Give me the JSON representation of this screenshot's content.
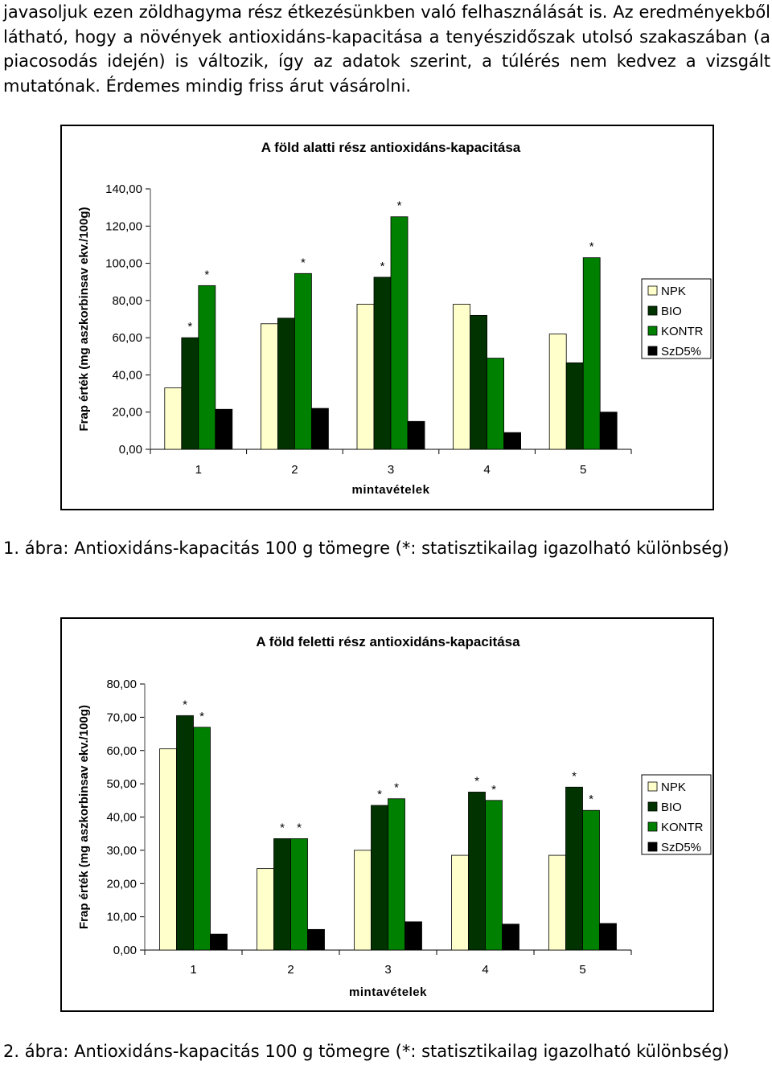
{
  "paragraph": {
    "lines": [
      "javasoljuk ezen zöldhagyma rész étkezésünkben való felhasználását is. Az eredményekből",
      "látható, hogy a növények antioxidáns-kapacitása a tenyészidőszak utolsó szakaszában (a",
      "piacosodás idején) is változik, így az adatok szerint, a túlérés nem kedvez a vizsgált",
      "mutatónak. Érdemes mindig friss árut vásárolni."
    ]
  },
  "colors": {
    "NPK": "#FFFFCC",
    "BIO": "#003300",
    "KONTR": "#008000",
    "SzD5%": "#000000"
  },
  "chart_data": [
    {
      "type": "bar",
      "title": "A föld alatti rész antioxidáns-kapacitása",
      "xlabel": "mintavételek",
      "ylabel": "Frap érték (mg aszkorbinsav ekv./100g)",
      "categories": [
        "1",
        "2",
        "3",
        "4",
        "5"
      ],
      "ylim": [
        0,
        140
      ],
      "yticks": [
        0,
        20,
        40,
        60,
        80,
        100,
        120,
        140
      ],
      "ytick_labels": [
        "0,00",
        "20,00",
        "40,00",
        "60,00",
        "80,00",
        "100,00",
        "120,00",
        "140,00"
      ],
      "legend_position": "right",
      "grid": false,
      "series": [
        {
          "name": "NPK",
          "values": [
            33,
            67.5,
            78,
            78,
            62
          ]
        },
        {
          "name": "BIO",
          "values": [
            60,
            70.5,
            92.5,
            72,
            46.5
          ]
        },
        {
          "name": "KONTR",
          "values": [
            88,
            94.5,
            125,
            49,
            103
          ]
        },
        {
          "name": "SzD5%",
          "values": [
            21.5,
            22,
            15,
            9,
            20
          ]
        }
      ],
      "annotations": [
        {
          "category": "1",
          "series": "BIO",
          "text": "*"
        },
        {
          "category": "1",
          "series": "KONTR",
          "text": "*"
        },
        {
          "category": "2",
          "series": "KONTR",
          "text": "*"
        },
        {
          "category": "3",
          "series": "BIO",
          "text": "*"
        },
        {
          "category": "3",
          "series": "KONTR",
          "text": "*"
        },
        {
          "category": "5",
          "series": "KONTR",
          "text": "*"
        }
      ]
    },
    {
      "type": "bar",
      "title": "A föld feletti rész antioxidáns-kapacitása",
      "xlabel": "mintavételek",
      "ylabel": "Frap érték (mg aszkorbinsav ekv./100g)",
      "categories": [
        "1",
        "2",
        "3",
        "4",
        "5"
      ],
      "ylim": [
        0,
        80
      ],
      "yticks": [
        0,
        10,
        20,
        30,
        40,
        50,
        60,
        70,
        80
      ],
      "ytick_labels": [
        "0,00",
        "10,00",
        "20,00",
        "30,00",
        "40,00",
        "50,00",
        "60,00",
        "70,00",
        "80,00"
      ],
      "legend_position": "right",
      "grid": false,
      "series": [
        {
          "name": "NPK",
          "values": [
            60.5,
            24.5,
            30,
            28.5,
            28.5
          ]
        },
        {
          "name": "BIO",
          "values": [
            70.5,
            33.5,
            43.5,
            47.5,
            49
          ]
        },
        {
          "name": "KONTR",
          "values": [
            67,
            33.5,
            45.5,
            45,
            42
          ]
        },
        {
          "name": "SzD5%",
          "values": [
            4.8,
            6.2,
            8.5,
            7.8,
            8
          ]
        }
      ],
      "annotations": [
        {
          "category": "1",
          "series": "BIO",
          "text": "*"
        },
        {
          "category": "1",
          "series": "KONTR",
          "text": "*"
        },
        {
          "category": "2",
          "series": "BIO",
          "text": "*"
        },
        {
          "category": "2",
          "series": "KONTR",
          "text": "*"
        },
        {
          "category": "3",
          "series": "BIO",
          "text": "*"
        },
        {
          "category": "3",
          "series": "KONTR",
          "text": "*"
        },
        {
          "category": "4",
          "series": "BIO",
          "text": "*"
        },
        {
          "category": "4",
          "series": "KONTR",
          "text": "*"
        },
        {
          "category": "5",
          "series": "BIO",
          "text": "*"
        },
        {
          "category": "5",
          "series": "KONTR",
          "text": "*"
        }
      ]
    }
  ],
  "captions": [
    "1. ábra: Antioxidáns-kapacitás 100 g tömegre (*: statisztikailag igazolható különbség)",
    "2. ábra: Antioxidáns-kapacitás 100 g tömegre (*: statisztikailag igazolható különbség)"
  ]
}
